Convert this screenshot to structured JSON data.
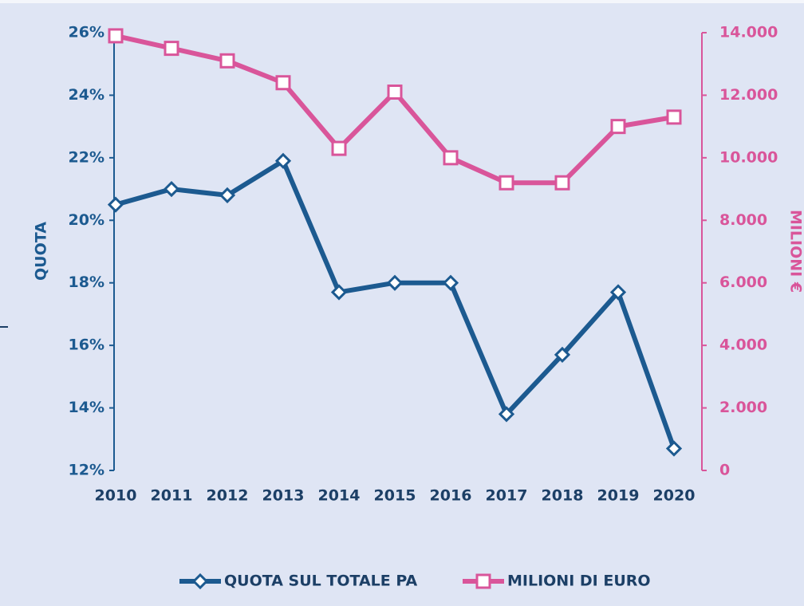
{
  "chart_data": {
    "type": "line",
    "categories": [
      "2010",
      "2011",
      "2012",
      "2013",
      "2014",
      "2015",
      "2016",
      "2017",
      "2018",
      "2019",
      "2020"
    ],
    "series": [
      {
        "name": "QUOTA SUL TOTALE PA",
        "color": "#1c5a90",
        "values": [
          20.5,
          21.0,
          20.8,
          21.9,
          17.7,
          18.0,
          18.0,
          13.8,
          15.7,
          17.7,
          12.7
        ]
      },
      {
        "name": "MILIONI DI EURO",
        "color": "#d9559a",
        "axis": "y2",
        "values": [
          13900,
          13500,
          13100,
          12400,
          10300,
          12100,
          10000,
          9200,
          9200,
          11000,
          11300
        ]
      }
    ],
    "ylabel": "QUOTA",
    "y2label": "MILIONI €",
    "ylim": [
      12,
      26
    ],
    "yticks": [
      {
        "value": 12,
        "label": "12%"
      },
      {
        "value": 14,
        "label": "14%"
      },
      {
        "value": 16,
        "label": "16%"
      },
      {
        "value": 18,
        "label": "18%"
      },
      {
        "value": 20,
        "label": "20%"
      },
      {
        "value": 22,
        "label": "22%"
      },
      {
        "value": 24,
        "label": "24%"
      },
      {
        "value": 26,
        "label": "26%"
      }
    ],
    "y2lim": [
      0,
      14000
    ],
    "y2ticks": [
      0,
      {
        "value": 2000,
        "label": "2.000"
      },
      {
        "value": 4000,
        "label": "4.000"
      },
      {
        "value": 6000,
        "label": "6.000"
      },
      {
        "value": 8000,
        "label": "8.000"
      },
      {
        "value": 10000,
        "label": "10.000"
      },
      {
        "value": 12000,
        "label": "12.000"
      },
      {
        "value": 14000,
        "label": "14.000"
      }
    ],
    "legend": "bottom"
  }
}
